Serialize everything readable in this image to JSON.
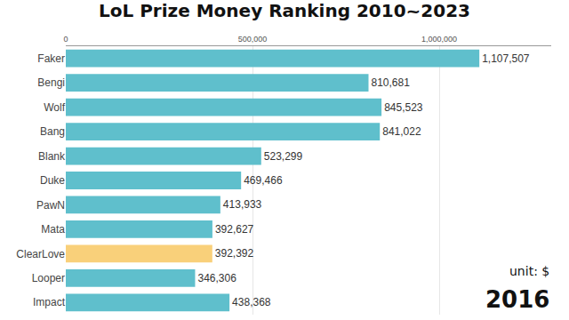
{
  "chart_data": {
    "type": "bar",
    "orientation": "horizontal",
    "title": "LoL Prize Money Ranking 2010~2023",
    "categories": [
      "Faker",
      "Bengi",
      "Wolf",
      "Bang",
      "Blank",
      "Duke",
      "PawN",
      "Mata",
      "ClearLove",
      "Looper",
      "Impact"
    ],
    "values": [
      1107507,
      810681,
      845523,
      841022,
      523299,
      469466,
      413933,
      392627,
      392392,
      346306,
      438368
    ],
    "value_labels": [
      "1,107,507",
      "810,681",
      "845,523",
      "841,022",
      "523,299",
      "469,466",
      "413,933",
      "392,627",
      "392,392",
      "346,306",
      "438,368"
    ],
    "colors": [
      "#5fbfcc",
      "#5fbfcc",
      "#5fbfcc",
      "#5fbfcc",
      "#5fbfcc",
      "#5fbfcc",
      "#5fbfcc",
      "#5fbfcc",
      "#f9d07a",
      "#5fbfcc",
      "#5fbfcc"
    ],
    "data_labels": true,
    "xlim": [
      0,
      1300000
    ],
    "xticks": [
      0,
      {
        "value": 500000,
        "label": "500,000"
      },
      {
        "value": 1000000,
        "label": "1,000,000"
      }
    ],
    "grid": true,
    "annotations": [
      {
        "text": "unit: $"
      },
      {
        "text": "2016"
      }
    ]
  }
}
